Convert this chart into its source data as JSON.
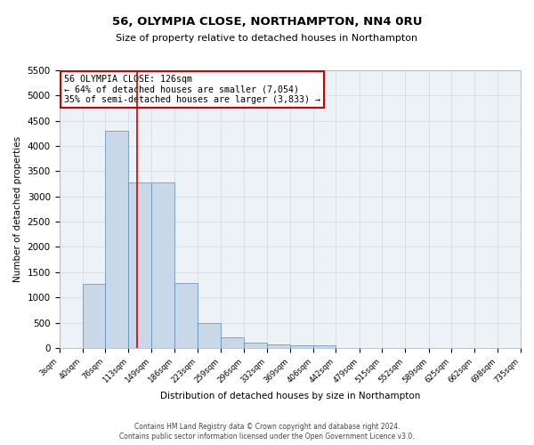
{
  "title": "56, OLYMPIA CLOSE, NORTHAMPTON, NN4 0RU",
  "subtitle": "Size of property relative to detached houses in Northampton",
  "xlabel": "Distribution of detached houses by size in Northampton",
  "ylabel": "Number of detached properties",
  "bar_edges": [
    3,
    40,
    76,
    113,
    149,
    186,
    223,
    259,
    296,
    332,
    369,
    406,
    442,
    479,
    515,
    552,
    589,
    625,
    662,
    698,
    735
  ],
  "bar_heights": [
    0,
    1270,
    4300,
    3280,
    3280,
    1290,
    490,
    210,
    100,
    75,
    55,
    55,
    0,
    0,
    0,
    0,
    0,
    0,
    0,
    0
  ],
  "bar_color": "#c8d8e8",
  "bar_edge_color": "#5b8db8",
  "ylim": [
    0,
    5500
  ],
  "yticks": [
    0,
    500,
    1000,
    1500,
    2000,
    2500,
    3000,
    3500,
    4000,
    4500,
    5000,
    5500
  ],
  "property_size": 126,
  "red_line_color": "#cc0000",
  "annotation_text": "56 OLYMPIA CLOSE: 126sqm\n← 64% of detached houses are smaller (7,054)\n35% of semi-detached houses are larger (3,833) →",
  "annotation_box_color": "#cc0000",
  "background_color": "#edf2f7",
  "grid_color": "#d0d8e0",
  "footer_line1": "Contains HM Land Registry data © Crown copyright and database right 2024.",
  "footer_line2": "Contains public sector information licensed under the Open Government Licence v3.0."
}
